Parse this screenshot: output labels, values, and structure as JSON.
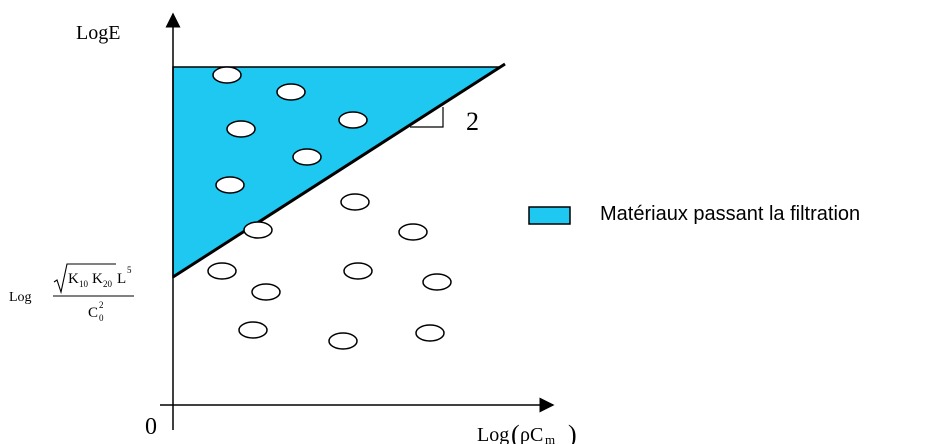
{
  "axes": {
    "y_label": "LogE",
    "x_label_prefix": "Log",
    "x_label_symbol": "ρC",
    "x_label_subscript": "m",
    "origin_label": "0"
  },
  "intercept": {
    "prefix": "Log",
    "sqrt_k1": "K",
    "sqrt_k1_sub": "10",
    "sqrt_k2": "K",
    "sqrt_k2_sub": "20",
    "after_sqrt": "L",
    "after_sqrt_sup": "5",
    "denominator": "C",
    "denominator_sub": "0",
    "denominator_sup": "2"
  },
  "slope_label": "2",
  "legend": {
    "label": "Matériaux passant la filtration",
    "swatch_color": "#1EC8F0"
  },
  "colors": {
    "region_fill": "#1EC8F0",
    "line": "#000000",
    "ellipse_fill": "#ffffff"
  }
}
